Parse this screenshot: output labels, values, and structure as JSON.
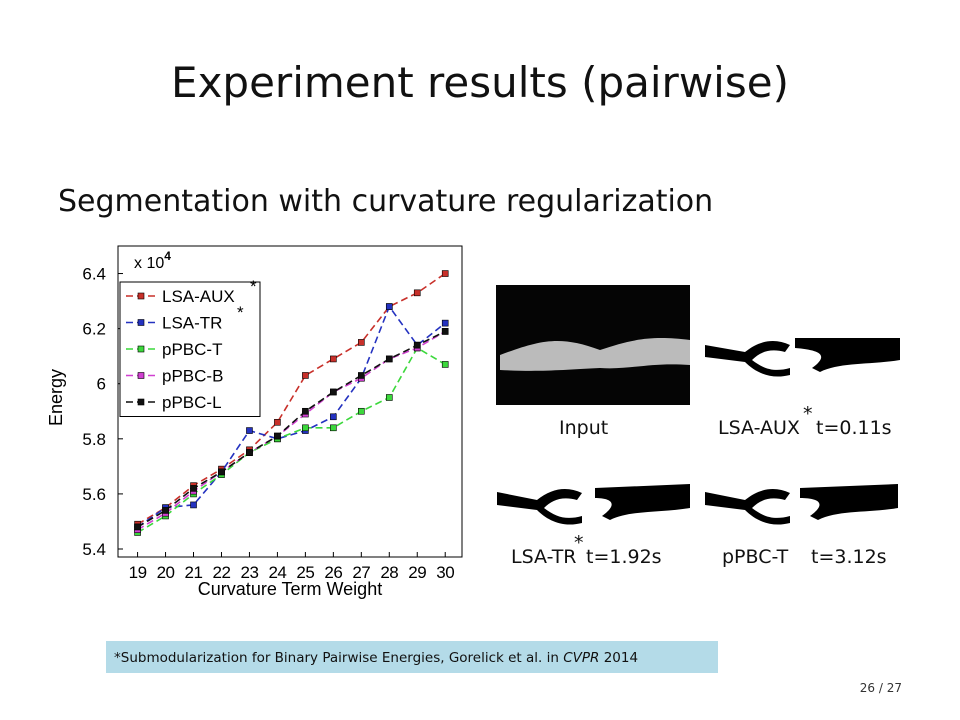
{
  "title": "Experiment results (pairwise)",
  "subtitle": "Segmentation with curvature regularization",
  "chart_data": {
    "type": "line",
    "ylabel": "Energy",
    "xlabel": "Curvature Term Weight",
    "multiplier": {
      "base": "x 10",
      "exponent": "4"
    },
    "x": [
      19,
      20,
      21,
      22,
      23,
      24,
      25,
      26,
      27,
      28,
      29,
      30
    ],
    "xlim": [
      18.3,
      30.6
    ],
    "xticks": [
      19,
      20,
      21,
      22,
      23,
      24,
      25,
      26,
      27,
      28,
      29,
      30
    ],
    "ylim": [
      5.4,
      6.5
    ],
    "yticks": [
      5.4,
      5.6,
      5.8,
      6,
      6.2,
      6.4
    ],
    "legend": "upper left",
    "legend_marks": [
      "*",
      "*"
    ],
    "series": [
      {
        "name": "LSA-AUX",
        "color": "#c8302a",
        "values": [
          5.49,
          5.55,
          5.63,
          5.69,
          5.76,
          5.86,
          6.03,
          6.09,
          6.15,
          6.28,
          6.33,
          6.4
        ]
      },
      {
        "name": "LSA-TR",
        "color": "#2432c0",
        "values": [
          5.48,
          5.55,
          5.56,
          5.68,
          5.83,
          5.8,
          5.83,
          5.88,
          6.02,
          6.28,
          6.14,
          6.22
        ]
      },
      {
        "name": "pPBC-T",
        "color": "#3cd83c",
        "values": [
          5.46,
          5.52,
          5.6,
          5.67,
          5.75,
          5.8,
          5.84,
          5.84,
          5.9,
          5.95,
          6.13,
          6.07
        ]
      },
      {
        "name": "pPBC-B",
        "color": "#d040d0",
        "values": [
          5.47,
          5.53,
          5.61,
          5.68,
          5.75,
          5.81,
          5.89,
          5.97,
          6.02,
          6.09,
          6.13,
          6.19
        ]
      },
      {
        "name": "pPBC-L",
        "color": "#111111",
        "values": [
          5.48,
          5.54,
          5.62,
          5.68,
          5.75,
          5.81,
          5.9,
          5.97,
          6.03,
          6.09,
          6.14,
          6.19
        ]
      }
    ]
  },
  "panels": [
    {
      "method": "Input"
    },
    {
      "method": "LSA-AUX",
      "mark": "*",
      "time": "t=0.11s"
    },
    {
      "method": "LSA-TR",
      "mark": "*",
      "time": "t=1.92s"
    },
    {
      "method": "pPBC-T",
      "time": "t=3.12s"
    }
  ],
  "footnote": {
    "text": "*Submodularization for Binary Pairwise Energies, Gorelick et al. in ",
    "venue": "CVPR",
    "year": " 2014"
  },
  "page": "26 / 27"
}
